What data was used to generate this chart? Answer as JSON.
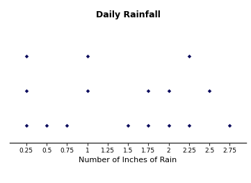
{
  "title": "Daily Rainfall",
  "xlabel": "Number of Inches of Rain",
  "dot_color": "#0d0d5e",
  "dot_size": 8,
  "xlim": [
    0.05,
    2.95
  ],
  "xticks": [
    0.25,
    0.5,
    0.75,
    1.0,
    1.25,
    1.5,
    1.75,
    2.0,
    2.25,
    2.5,
    2.75
  ],
  "xtick_labels": [
    "0.25",
    "0.5",
    "0.75",
    "1",
    "1.25",
    "1.5",
    "1.75",
    "2",
    "2.25",
    "2.5",
    "2.75"
  ],
  "data_points": [
    [
      0.25,
      1
    ],
    [
      0.5,
      1
    ],
    [
      0.75,
      1
    ],
    [
      1.5,
      1
    ],
    [
      1.75,
      1
    ],
    [
      2.0,
      1
    ],
    [
      2.25,
      1
    ],
    [
      2.75,
      1
    ],
    [
      0.25,
      2
    ],
    [
      1.0,
      2
    ],
    [
      1.75,
      2
    ],
    [
      2.0,
      2
    ],
    [
      2.5,
      2
    ],
    [
      0.25,
      3
    ],
    [
      1.0,
      3
    ],
    [
      2.25,
      3
    ]
  ],
  "background_color": "#ffffff",
  "title_fontsize": 9,
  "xlabel_fontsize": 8,
  "tick_fontsize": 6.5
}
